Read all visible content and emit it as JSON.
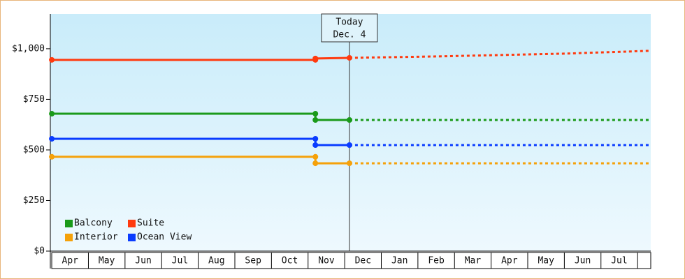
{
  "chart_data": {
    "type": "line",
    "categories_note_free": null,
    "xlim": [
      -0.04,
      16.36
    ],
    "xticks": [
      {
        "value": 0.5,
        "label": "Apr"
      },
      {
        "value": 1.5,
        "label": "May"
      },
      {
        "value": 2.5,
        "label": "Jun"
      },
      {
        "value": 3.5,
        "label": "Jul"
      },
      {
        "value": 4.5,
        "label": "Aug"
      },
      {
        "value": 5.5,
        "label": "Sep"
      },
      {
        "value": 6.5,
        "label": "Oct"
      },
      {
        "value": 7.5,
        "label": "Nov"
      },
      {
        "value": 8.5,
        "label": "Dec"
      },
      {
        "value": 9.5,
        "label": "Jan"
      },
      {
        "value": 10.5,
        "label": "Feb"
      },
      {
        "value": 11.5,
        "label": "Mar"
      },
      {
        "value": 12.5,
        "label": "Apr"
      },
      {
        "value": 13.5,
        "label": "May"
      },
      {
        "value": 14.5,
        "label": "Jun"
      },
      {
        "value": 15.5,
        "label": "Jul"
      }
    ],
    "ylim": [
      0,
      1172
    ],
    "yticks": [
      {
        "value": 0,
        "label": "$0"
      },
      {
        "value": 250,
        "label": "$250"
      },
      {
        "value": 500,
        "label": "$500"
      },
      {
        "value": 750,
        "label": "$750"
      },
      {
        "value": 1000,
        "label": "$1,000"
      }
    ],
    "today": {
      "x": 8.13,
      "label": [
        "Today",
        "Dec. 4"
      ]
    },
    "series": [
      {
        "name": "Balcony",
        "color": "#1a9a1a",
        "x": [
          0,
          7.2,
          7.2,
          8.13
        ],
        "values": [
          679,
          679,
          648,
          648
        ],
        "forecast_x": [
          8.13,
          16.36
        ],
        "forecast_values": [
          648,
          648
        ]
      },
      {
        "name": "Suite",
        "color": "#ff3a0f",
        "x": [
          0,
          7.2,
          7.2,
          8.13
        ],
        "values": [
          945,
          945,
          952,
          955
        ],
        "forecast_x": [
          8.13,
          10.5,
          12,
          14,
          16.36
        ],
        "forecast_values": [
          955,
          962,
          968,
          976,
          990
        ]
      },
      {
        "name": "Interior",
        "color": "#f5a10a",
        "x": [
          0,
          7.2,
          7.2,
          8.13
        ],
        "values": [
          466,
          466,
          434,
          434
        ],
        "forecast_x": [
          8.13,
          16.36
        ],
        "forecast_values": [
          434,
          434
        ]
      },
      {
        "name": "Ocean View",
        "color": "#0a3cff",
        "x": [
          0,
          7.2,
          7.2,
          8.13
        ],
        "values": [
          555,
          555,
          524,
          524
        ],
        "forecast_x": [
          8.13,
          16.36
        ],
        "forecast_values": [
          524,
          524
        ]
      }
    ]
  }
}
